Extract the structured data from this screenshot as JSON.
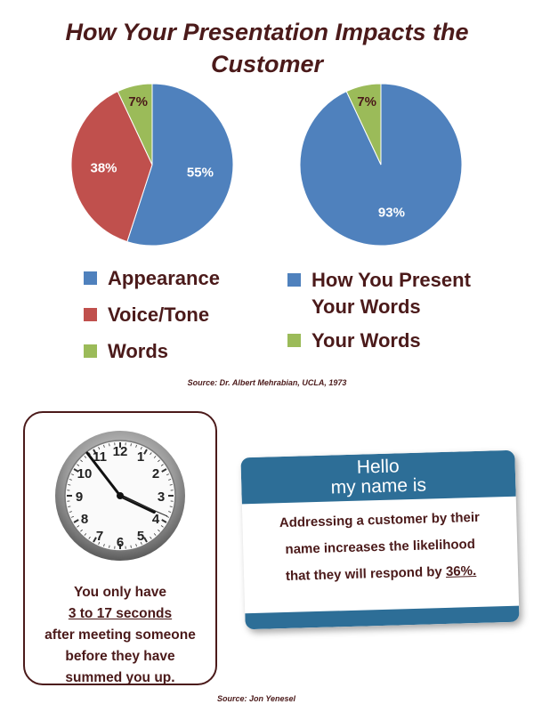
{
  "title": {
    "line1": "How Your Presentation Impacts the",
    "line2": "Customer"
  },
  "chart_data": [
    {
      "type": "pie",
      "categories": [
        "Appearance",
        "Voice/Tone",
        "Words"
      ],
      "values": [
        55,
        38,
        7
      ],
      "labels": [
        "55%",
        "38%",
        "7%"
      ],
      "colors": [
        "#4f81bd",
        "#c0504d",
        "#9bbb59"
      ],
      "legend": "bottom"
    },
    {
      "type": "pie",
      "categories": [
        "How You Present Your Words",
        "Your Words"
      ],
      "values": [
        93,
        7
      ],
      "labels": [
        "93%",
        "7%"
      ],
      "colors": [
        "#4f81bd",
        "#9bbb59"
      ],
      "legend": "bottom"
    }
  ],
  "legend_left": [
    {
      "label": "Appearance",
      "color": "#4f81bd"
    },
    {
      "label": "Voice/Tone",
      "color": "#c0504d"
    },
    {
      "label": "Words",
      "color": "#9bbb59"
    }
  ],
  "legend_right": [
    {
      "label_line1": "How You Present",
      "label_line2": "Your Words",
      "color": "#4f81bd"
    },
    {
      "label_line1": "Your Words",
      "color": "#9bbb59"
    }
  ],
  "source_top": "Source: Dr. Albert Mehrabian, UCLA, 1973",
  "clock_card": {
    "line1": "You only have",
    "highlight": "3 to 17 seconds",
    "line3": "after meeting someone",
    "line4": "before they have",
    "line5": "summed you up."
  },
  "name_badge": {
    "hello": "Hello",
    "my_name_is": "my name is",
    "line1": "Addressing a customer by their",
    "line2": "name increases the likelihood",
    "line3_prefix": "that they will respond by ",
    "highlight": "36%."
  },
  "source_bottom": "Source: Jon Yenesel",
  "colors": {
    "text": "#4b1a1a",
    "badge": "#2d6e97"
  }
}
